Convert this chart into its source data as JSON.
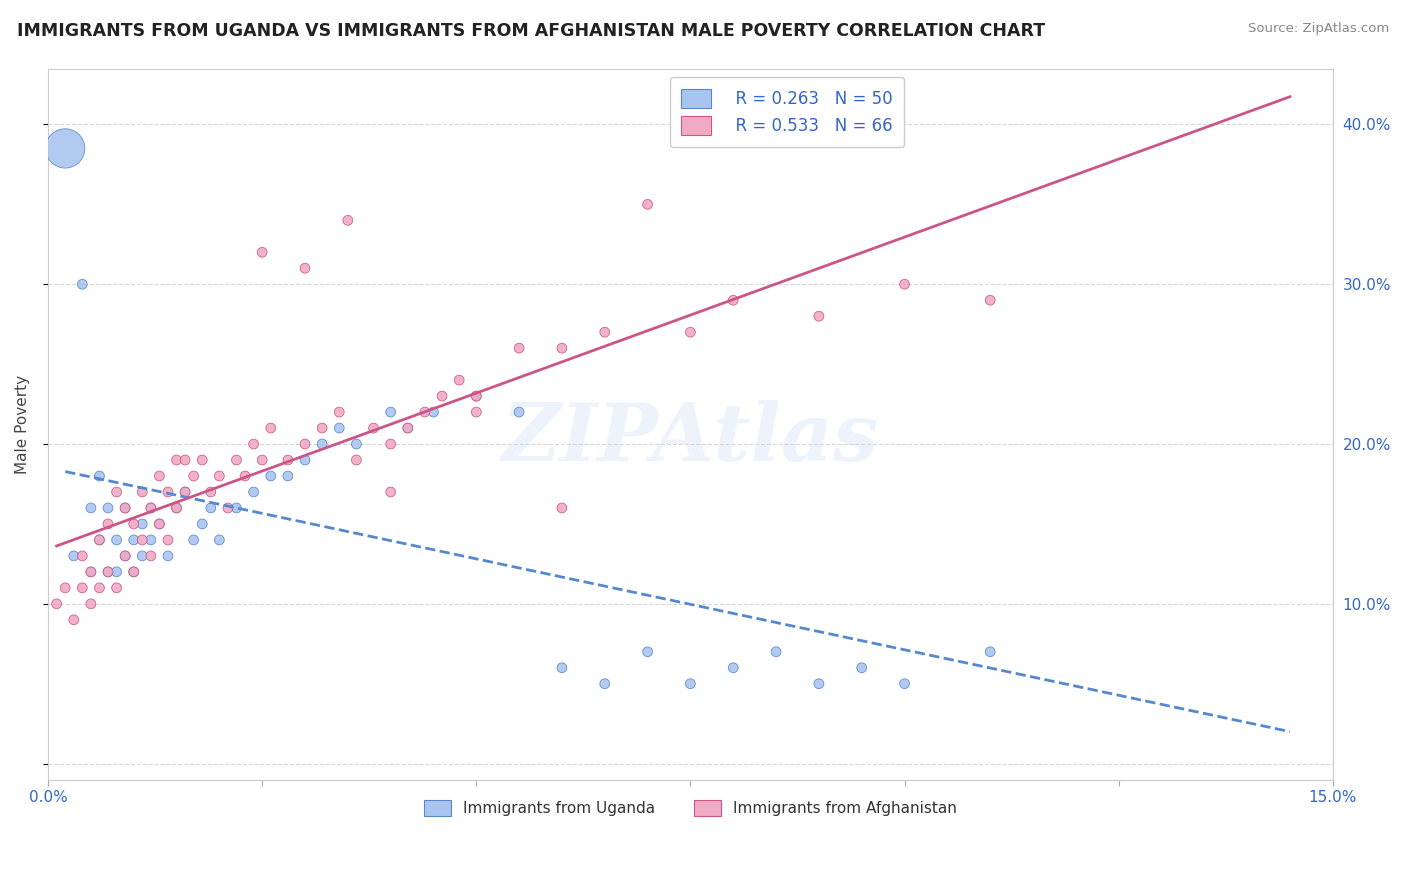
{
  "title": "IMMIGRANTS FROM UGANDA VS IMMIGRANTS FROM AFGHANISTAN MALE POVERTY CORRELATION CHART",
  "source": "Source: ZipAtlas.com",
  "ylabel": "Male Poverty",
  "xlim": [
    0.0,
    0.15
  ],
  "ylim": [
    -0.01,
    0.435
  ],
  "watermark": "ZIPAtlas",
  "legend_R1": "R = 0.263",
  "legend_N1": "N = 50",
  "legend_R2": "R = 0.533",
  "legend_N2": "N = 66",
  "color_uganda": "#aac4f0",
  "color_afghanistan": "#f0aac4",
  "color_line_uganda": "#5588cc",
  "color_line_afghanistan": "#cc5588",
  "color_text_blue": "#3366cc",
  "uganda_x": [
    0.002,
    0.003,
    0.004,
    0.005,
    0.005,
    0.006,
    0.006,
    0.007,
    0.007,
    0.008,
    0.008,
    0.009,
    0.009,
    0.01,
    0.01,
    0.011,
    0.011,
    0.012,
    0.012,
    0.013,
    0.014,
    0.015,
    0.016,
    0.017,
    0.018,
    0.019,
    0.02,
    0.022,
    0.024,
    0.026,
    0.028,
    0.03,
    0.032,
    0.034,
    0.036,
    0.04,
    0.042,
    0.045,
    0.05,
    0.055,
    0.06,
    0.065,
    0.07,
    0.075,
    0.08,
    0.085,
    0.09,
    0.095,
    0.1,
    0.11
  ],
  "uganda_y": [
    0.385,
    0.13,
    0.3,
    0.12,
    0.16,
    0.14,
    0.18,
    0.12,
    0.16,
    0.14,
    0.12,
    0.16,
    0.13,
    0.14,
    0.12,
    0.15,
    0.13,
    0.14,
    0.16,
    0.15,
    0.13,
    0.16,
    0.17,
    0.14,
    0.15,
    0.16,
    0.14,
    0.16,
    0.17,
    0.18,
    0.18,
    0.19,
    0.2,
    0.21,
    0.2,
    0.22,
    0.21,
    0.22,
    0.23,
    0.22,
    0.06,
    0.05,
    0.07,
    0.05,
    0.06,
    0.07,
    0.05,
    0.06,
    0.05,
    0.07
  ],
  "uganda_size": [
    800,
    50,
    50,
    50,
    50,
    50,
    50,
    50,
    50,
    50,
    50,
    50,
    50,
    50,
    50,
    50,
    50,
    50,
    50,
    50,
    50,
    50,
    50,
    50,
    50,
    50,
    50,
    50,
    50,
    50,
    50,
    50,
    50,
    50,
    50,
    50,
    50,
    50,
    50,
    50,
    50,
    50,
    50,
    50,
    50,
    50,
    50,
    50,
    50,
    50
  ],
  "afghanistan_x": [
    0.001,
    0.002,
    0.003,
    0.004,
    0.004,
    0.005,
    0.005,
    0.006,
    0.006,
    0.007,
    0.007,
    0.008,
    0.008,
    0.009,
    0.009,
    0.01,
    0.01,
    0.011,
    0.011,
    0.012,
    0.012,
    0.013,
    0.013,
    0.014,
    0.014,
    0.015,
    0.015,
    0.016,
    0.016,
    0.017,
    0.018,
    0.019,
    0.02,
    0.021,
    0.022,
    0.023,
    0.024,
    0.025,
    0.026,
    0.028,
    0.03,
    0.032,
    0.034,
    0.036,
    0.038,
    0.04,
    0.042,
    0.044,
    0.046,
    0.048,
    0.05,
    0.055,
    0.06,
    0.065,
    0.07,
    0.075,
    0.08,
    0.09,
    0.1,
    0.11,
    0.025,
    0.03,
    0.035,
    0.04,
    0.05,
    0.06
  ],
  "afghanistan_y": [
    0.1,
    0.11,
    0.09,
    0.11,
    0.13,
    0.1,
    0.12,
    0.11,
    0.14,
    0.12,
    0.15,
    0.11,
    0.17,
    0.13,
    0.16,
    0.12,
    0.15,
    0.14,
    0.17,
    0.13,
    0.16,
    0.15,
    0.18,
    0.14,
    0.17,
    0.16,
    0.19,
    0.17,
    0.19,
    0.18,
    0.19,
    0.17,
    0.18,
    0.16,
    0.19,
    0.18,
    0.2,
    0.19,
    0.21,
    0.19,
    0.2,
    0.21,
    0.22,
    0.19,
    0.21,
    0.17,
    0.21,
    0.22,
    0.23,
    0.24,
    0.23,
    0.26,
    0.26,
    0.27,
    0.35,
    0.27,
    0.29,
    0.28,
    0.3,
    0.29,
    0.32,
    0.31,
    0.34,
    0.2,
    0.22,
    0.16
  ],
  "afghanistan_size": [
    50,
    50,
    50,
    50,
    50,
    50,
    50,
    50,
    50,
    50,
    50,
    50,
    50,
    50,
    50,
    50,
    50,
    50,
    50,
    50,
    50,
    50,
    50,
    50,
    50,
    50,
    50,
    50,
    50,
    50,
    50,
    50,
    50,
    50,
    50,
    50,
    50,
    50,
    50,
    50,
    50,
    50,
    50,
    50,
    50,
    50,
    50,
    50,
    50,
    50,
    50,
    50,
    50,
    50,
    50,
    50,
    50,
    50,
    50,
    50,
    50,
    50,
    50,
    50,
    50,
    50
  ]
}
